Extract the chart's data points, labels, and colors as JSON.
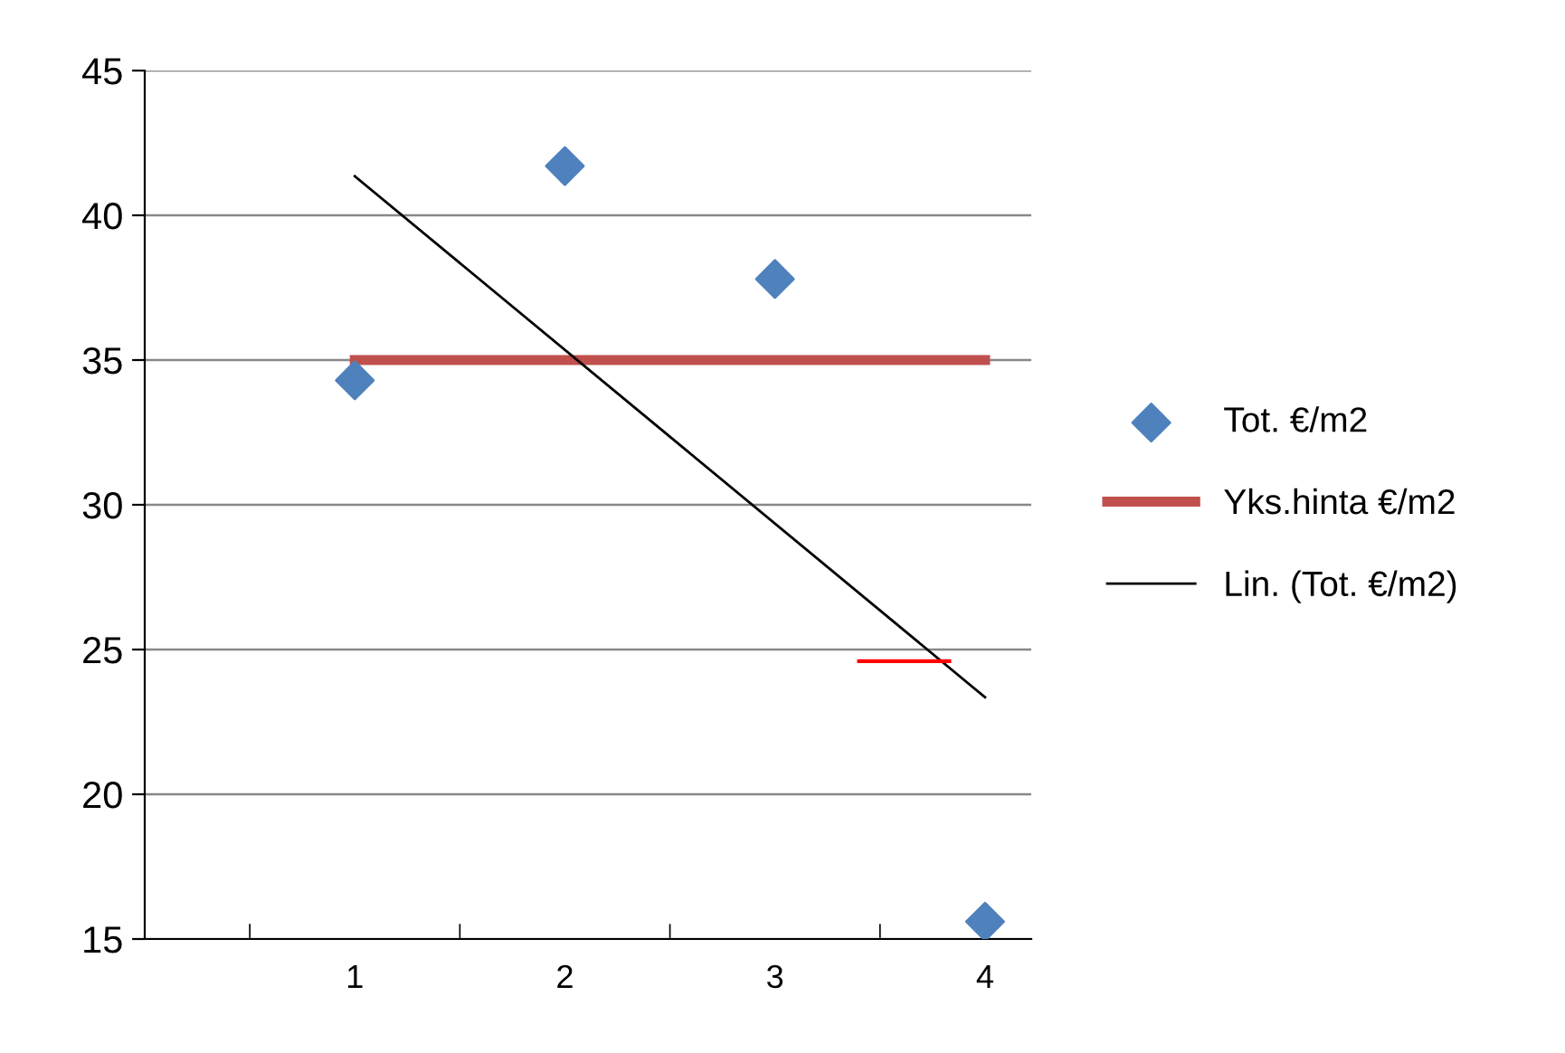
{
  "chart_data": {
    "type": "scatter",
    "xlim": [
      0,
      4.22
    ],
    "xticks": [
      {
        "value": 0.5,
        "label": null
      },
      {
        "value": 1,
        "label": "1"
      },
      {
        "value": 1.5,
        "label": null
      },
      {
        "value": 2,
        "label": "2"
      },
      {
        "value": 2.5,
        "label": null
      },
      {
        "value": 3,
        "label": "3"
      },
      {
        "value": 3.5,
        "label": null
      },
      {
        "value": 4,
        "label": "4"
      }
    ],
    "ylim": [
      15,
      45
    ],
    "yticks": [
      15,
      20,
      25,
      30,
      35,
      40,
      45
    ],
    "grid": "y",
    "legend": "right",
    "series": [
      {
        "name": "Tot. €/m2",
        "marker": "diamond",
        "color": "#4f81bd",
        "x": [
          1,
          2,
          3,
          4
        ],
        "values": [
          34.3,
          41.7,
          37.8,
          15.6
        ]
      },
      {
        "name": "Yks.hinta €/m2",
        "type": "line",
        "color": "#c0504d",
        "x": [
          1,
          4
        ],
        "values": [
          35,
          35
        ]
      },
      {
        "name": "Lin. (Tot. €/m2)",
        "type": "line",
        "color": "#000000",
        "x": [
          1,
          4
        ],
        "values": [
          41.35,
          23.35
        ]
      },
      {
        "type": "line",
        "color": "#ff0000",
        "x": [
          3.4,
          3.83
        ],
        "values": [
          24.6,
          24.6
        ]
      }
    ]
  }
}
